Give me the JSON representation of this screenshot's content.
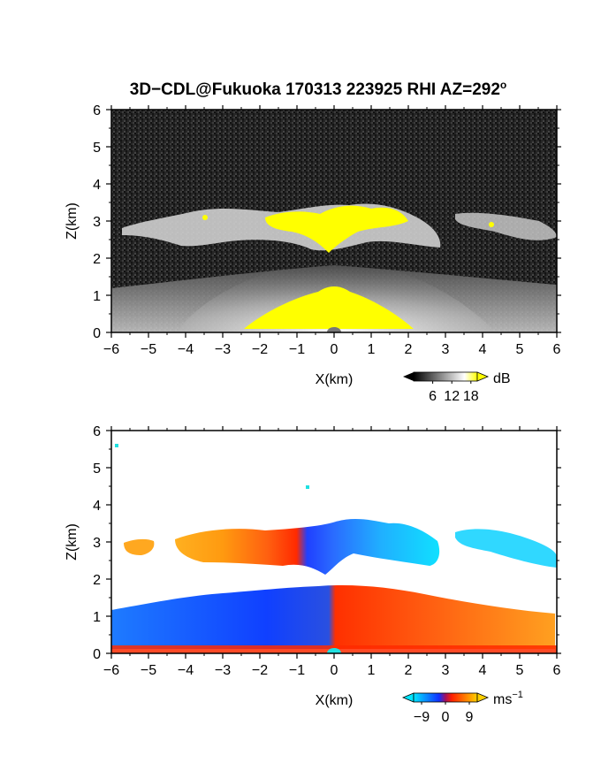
{
  "title": "3D−CDL@Fukuoka 170313 223925 RHI AZ=292",
  "title_degree": "o",
  "chart_data": [
    {
      "type": "heatmap",
      "quantity": "SNR",
      "xlabel": "X(km)",
      "ylabel": "Z(km)",
      "xlim": [
        -6,
        6
      ],
      "ylim": [
        0,
        6
      ],
      "xticks": [
        -6,
        -5,
        -4,
        -3,
        -2,
        -1,
        0,
        1,
        2,
        3,
        4,
        5,
        6
      ],
      "yticks": [
        0,
        1,
        2,
        3,
        4,
        5,
        6
      ],
      "colorbar": {
        "label": "dB",
        "ticks": [
          6,
          12,
          18
        ],
        "range": [
          0,
          20
        ],
        "colors": [
          "#000000",
          "#ffffff",
          "#ffff00"
        ]
      },
      "features": [
        {
          "name": "cloud layer",
          "x_range": [
            -6,
            6
          ],
          "z_range": [
            2.0,
            3.6
          ]
        },
        {
          "name": "boundary layer",
          "x_range": [
            -6,
            6
          ],
          "z_range": [
            0,
            1.2
          ]
        }
      ]
    },
    {
      "type": "heatmap",
      "quantity": "Doppler velocity",
      "xlabel": "X(km)",
      "ylabel": "Z(km)",
      "xlim": [
        -6,
        6
      ],
      "ylim": [
        0,
        6
      ],
      "xticks": [
        -6,
        -5,
        -4,
        -3,
        -2,
        -1,
        0,
        1,
        2,
        3,
        4,
        5,
        6
      ],
      "yticks": [
        0,
        1,
        2,
        3,
        4,
        5,
        6
      ],
      "colorbar": {
        "label": "ms",
        "label_exponent": "−1",
        "ticks": [
          "−9",
          "0",
          "9"
        ],
        "range": [
          -12,
          12
        ],
        "colors": [
          "#00e5ff",
          "#1030ff",
          "#ff2000",
          "#ffd000"
        ]
      },
      "features": [
        {
          "name": "cloud layer",
          "x_range": [
            -5.9,
            6
          ],
          "z_range": [
            2.1,
            3.6
          ]
        },
        {
          "name": "boundary layer",
          "x_range": [
            -6,
            6
          ],
          "z_range": [
            0,
            1.8
          ]
        }
      ]
    }
  ]
}
